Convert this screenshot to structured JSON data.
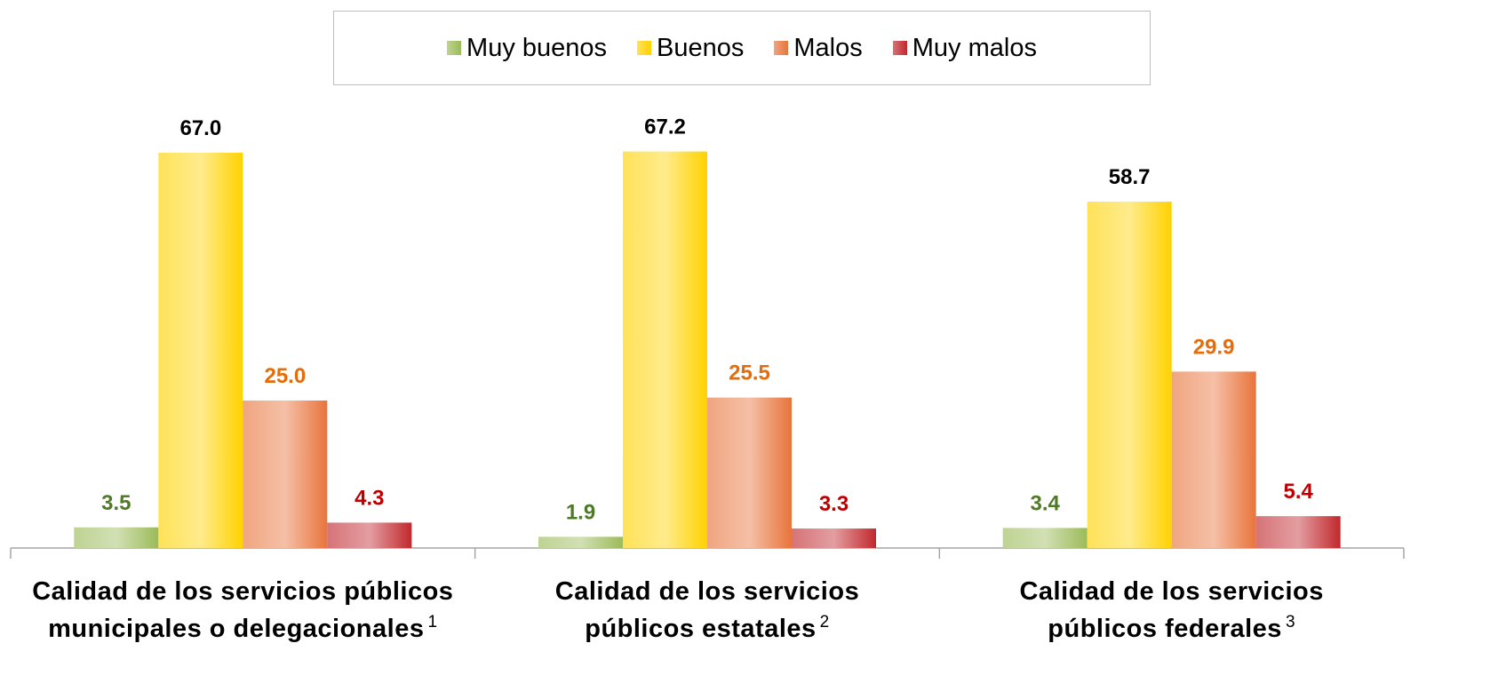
{
  "chart_data": {
    "type": "bar",
    "categories": [
      "Calidad de los servicios públicos\nmunicipales o delegacionales",
      "Calidad de los servicios\npúblicos estatales",
      "Calidad de los servicios\npúblicos federales"
    ],
    "category_notes": [
      "1",
      "2",
      "3"
    ],
    "series": [
      {
        "name": "Muy buenos",
        "color": "#9bbb59",
        "label_color": "#4f7a28",
        "values": [
          3.5,
          1.9,
          3.4
        ],
        "value_labels": [
          "3.5",
          "1.9",
          "3.4"
        ]
      },
      {
        "name": "Buenos",
        "color": "#ffd200",
        "label_color": "#000000",
        "values": [
          67.0,
          67.2,
          58.7
        ],
        "value_labels": [
          "67.0",
          "67.2",
          "58.7"
        ]
      },
      {
        "name": "Malos",
        "color": "#e8743b",
        "label_color": "#e46c0a",
        "values": [
          25.0,
          25.5,
          29.9
        ],
        "value_labels": [
          "25.0",
          "25.5",
          "29.9"
        ]
      },
      {
        "name": "Muy malos",
        "color": "#c0282d",
        "label_color": "#c00000",
        "values": [
          4.3,
          3.3,
          5.4
        ],
        "value_labels": [
          "4.3",
          "3.3",
          "5.4"
        ]
      }
    ],
    "ylim": [
      0,
      70
    ]
  }
}
